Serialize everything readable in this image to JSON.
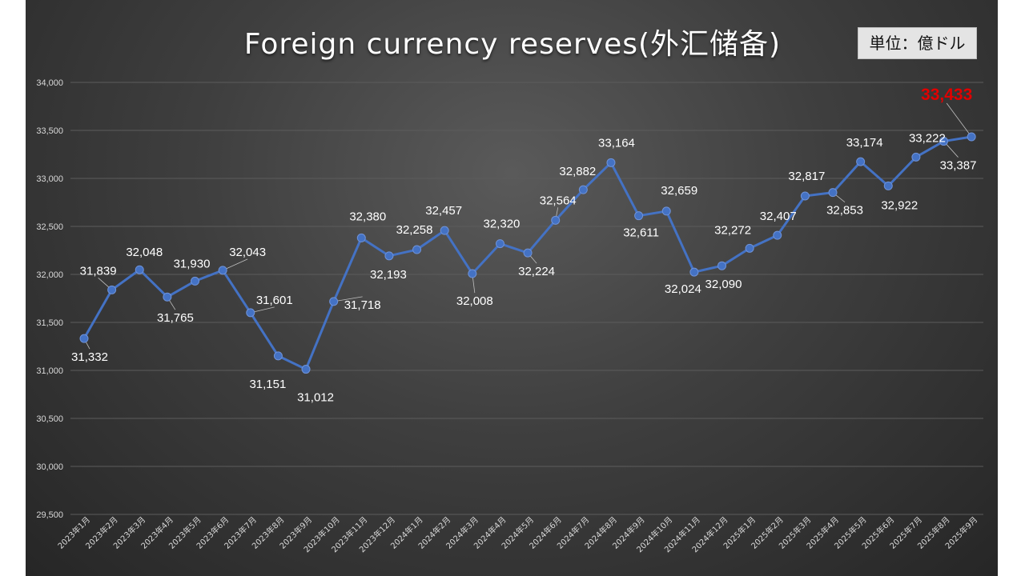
{
  "chart_data": {
    "type": "line",
    "title": "Foreign currency reserves(外汇储备)",
    "unit_badge": "単位：億ドル",
    "ylim": [
      29500,
      34000
    ],
    "y_ticks": [
      "29,500",
      "30,000",
      "30,500",
      "31,000",
      "31,500",
      "32,000",
      "32,500",
      "33,000",
      "33,500",
      "34,000"
    ],
    "y_tick_values": [
      29500,
      30000,
      30500,
      31000,
      31500,
      32000,
      32500,
      33000,
      33500,
      34000
    ],
    "grid": true,
    "categories": [
      "2023年1月",
      "2023年2月",
      "2023年3月",
      "2023年4月",
      "2023年5月",
      "2023年6月",
      "2023年7月",
      "2023年8月",
      "2023年9月",
      "2023年10月",
      "2023年11月",
      "2023年12月",
      "2024年1月",
      "2024年2月",
      "2024年3月",
      "2024年4月",
      "2024年5月",
      "2024年6月",
      "2024年7月",
      "2024年8月",
      "2024年9月",
      "2024年10月",
      "2024年11月",
      "2024年12月",
      "2025年1月",
      "2025年2月",
      "2025年3月",
      "2025年4月",
      "2025年5月",
      "2025年6月",
      "2025年7月",
      "2025年8月",
      "2025年9月"
    ],
    "series": [
      {
        "values": [
          31332,
          31839,
          32048,
          31765,
          31930,
          32043,
          31601,
          31151,
          31012,
          31718,
          32380,
          32193,
          32258,
          32457,
          32008,
          32320,
          32224,
          32564,
          32882,
          33164,
          32611,
          32659,
          32024,
          32090,
          32272,
          32407,
          32817,
          32853,
          33174,
          32922,
          33222,
          33387,
          33433
        ],
        "labels": [
          "31,332",
          "31,839",
          "32,048",
          "31,765",
          "31,930",
          "32,043",
          "31,601",
          "31,151",
          "31,012",
          "31,718",
          "32,380",
          "32,193",
          "32,258",
          "32,457",
          "32,008",
          "32,320",
          "32,224",
          "32,564",
          "32,882",
          "33,164",
          "32,611",
          "32,659",
          "32,024",
          "32,090",
          "32,272",
          "32,407",
          "32,817",
          "32,853",
          "33,174",
          "32,922",
          "33,222",
          "33,387",
          "33,433"
        ]
      }
    ],
    "colors": {
      "line": "#4472c4",
      "marker": "#4472c4",
      "highlight_label": "#e00000",
      "label": "#ffffff",
      "grid": "#5c5c5c"
    }
  }
}
